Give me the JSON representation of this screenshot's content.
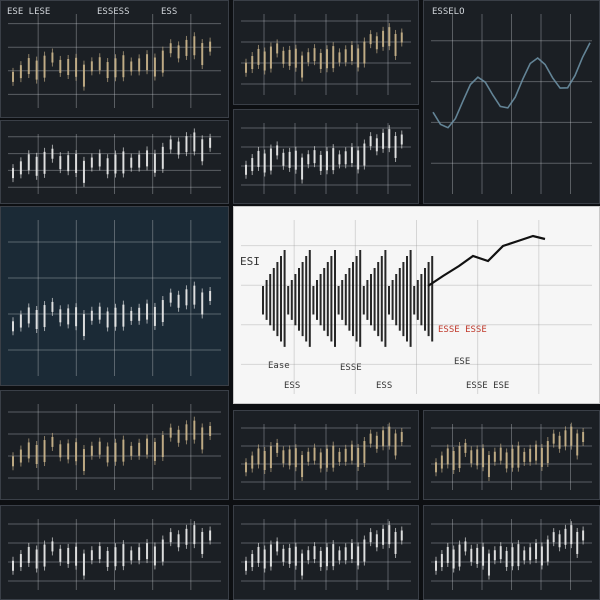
{
  "labels": {
    "top_left_a": "ESE LESE",
    "top_left_b": "ESSESS",
    "top_left_c": "ESS",
    "top_right_title": "ESSELO",
    "center_left_mark": "ESI",
    "center_bottom_a": "Ease",
    "center_bottom_b": "ESSE",
    "center_bottom_c": "ESS",
    "center_bottom_d": "ESS",
    "center_right_a": "ESE",
    "center_right_b": "ESSE ESSE",
    "center_right_c": "ESSE ESE"
  },
  "colors": {
    "bg": "#0d0f12",
    "panel_dark": "#1b1f24",
    "panel_blue": "#1b2a36",
    "panel_light": "#f6f6f6",
    "candle_gold": "#c8b28a",
    "candle_white": "#e8e8e8",
    "line_black": "#111111",
    "accent_red": "#c0392b"
  }
}
